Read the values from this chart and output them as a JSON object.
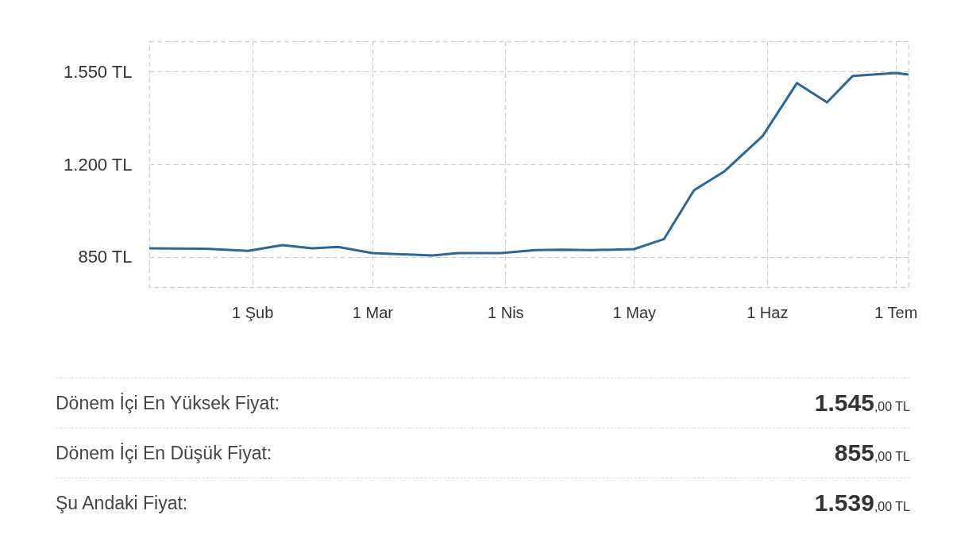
{
  "chart_data": {
    "type": "line",
    "color": "#2b6797",
    "x": [
      "--01-08",
      "--01-22",
      "--01-31",
      "--02-08",
      "--02-15",
      "--02-21",
      "--03-01",
      "--03-15",
      "--03-21",
      "--03-31",
      "--04-08",
      "--04-14",
      "--04-21",
      "--05-01",
      "--05-08",
      "--05-15",
      "--05-22",
      "--05-31",
      "--06-08",
      "--06-15",
      "--06-21",
      "--07-01",
      "--07-04"
    ],
    "values": [
      882,
      880,
      872,
      894,
      882,
      887,
      864,
      855,
      864,
      864,
      875,
      877,
      875,
      879,
      917,
      1102,
      1172,
      1307,
      1507,
      1434,
      1534,
      1545,
      1539
    ],
    "xlim": [
      "--01-08",
      "--07-04"
    ],
    "xticks": [
      {
        "value": "--02-01",
        "label": "1 Şub"
      },
      {
        "value": "--03-01",
        "label": "1 Mar"
      },
      {
        "value": "--04-01",
        "label": "1 Nis"
      },
      {
        "value": "--05-01",
        "label": "1 May"
      },
      {
        "value": "--06-01",
        "label": "1 Haz"
      },
      {
        "value": "--07-01",
        "label": "1 Tem"
      }
    ],
    "ylim": [
      735,
      1665
    ],
    "yticks": [
      {
        "value": 850,
        "label": "850 TL"
      },
      {
        "value": 1200,
        "label": "1.200 TL"
      },
      {
        "value": 1550,
        "label": "1.550 TL"
      }
    ],
    "grid": true,
    "annotations": [
      "Dönem İçi En Yüksek Fiyat:",
      "1.545,00 TL",
      "Dönem İçi En Düşük Fiyat:",
      "855,00 TL",
      "Şu Andaki Fiyat:",
      "1.539,00 TL"
    ]
  }
}
